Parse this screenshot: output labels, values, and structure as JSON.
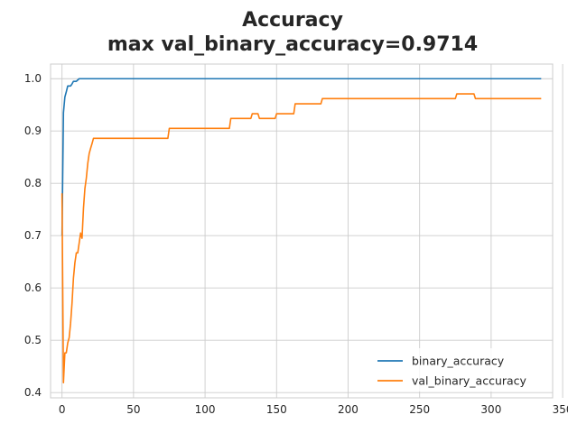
{
  "chart_data": {
    "type": "line",
    "title": "Accuracy",
    "subtitle": "max val_binary_accuracy=0.9714",
    "xlabel": "",
    "ylabel": "",
    "xlim": [
      -8,
      343
    ],
    "ylim": [
      0.39,
      1.028
    ],
    "xticks": [
      0,
      50,
      100,
      150,
      200,
      250,
      300,
      350
    ],
    "yticks": [
      0.4,
      0.5,
      0.6,
      0.7,
      0.8,
      0.9,
      1.0
    ],
    "xtick_labels": [
      "0",
      "50",
      "100",
      "150",
      "200",
      "250",
      "300",
      "350"
    ],
    "ytick_labels": [
      "0.4",
      "0.5",
      "0.6",
      "0.7",
      "0.8",
      "0.9",
      "1.0"
    ],
    "grid": true,
    "legend_position": "bottom-right",
    "series": [
      {
        "name": "binary_accuracy",
        "color": "#1f77b4",
        "x": [
          0,
          1,
          2,
          3,
          4,
          5,
          6,
          7,
          8,
          9,
          10,
          12,
          14,
          20,
          50,
          100,
          150,
          200,
          250,
          300,
          335
        ],
        "y": [
          0.7,
          0.935,
          0.965,
          0.975,
          0.986,
          0.986,
          0.986,
          0.99,
          0.995,
          0.995,
          0.995,
          1.0,
          1.0,
          1.0,
          1.0,
          1.0,
          1.0,
          1.0,
          1.0,
          1.0,
          1.0
        ]
      },
      {
        "name": "val_binary_accuracy",
        "color": "#ff7f0e",
        "x": [
          0,
          1,
          2,
          3,
          4,
          5,
          6,
          7,
          8,
          9,
          10,
          11,
          12,
          13,
          14,
          15,
          16,
          17,
          18,
          19,
          20,
          21,
          22,
          23,
          24,
          25,
          74,
          75,
          117,
          118,
          132,
          133,
          137,
          138,
          149,
          150,
          162,
          163,
          181,
          182,
          275,
          276,
          288,
          289,
          335
        ],
        "y": [
          0.781,
          0.419,
          0.476,
          0.476,
          0.495,
          0.505,
          0.533,
          0.571,
          0.619,
          0.648,
          0.667,
          0.667,
          0.686,
          0.705,
          0.695,
          0.752,
          0.79,
          0.81,
          0.838,
          0.857,
          0.867,
          0.876,
          0.886,
          0.886,
          0.886,
          0.886,
          0.886,
          0.905,
          0.905,
          0.924,
          0.924,
          0.933,
          0.933,
          0.924,
          0.924,
          0.933,
          0.933,
          0.952,
          0.952,
          0.962,
          0.962,
          0.971,
          0.971,
          0.962,
          0.962
        ]
      }
    ]
  }
}
